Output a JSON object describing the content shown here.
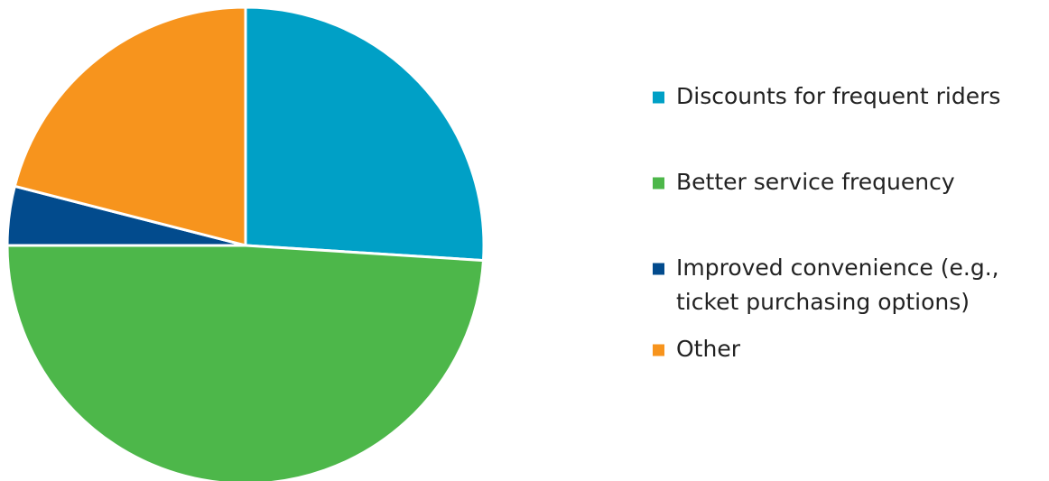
{
  "chart_data": {
    "type": "pie",
    "title": "",
    "start_angle": "12 o'clock",
    "direction": "clockwise",
    "legend_position": "right",
    "slices": [
      {
        "label": "Discounts for frequent riders",
        "value": 26,
        "color": "#00A0C6"
      },
      {
        "label": "Better service frequency",
        "value": 49,
        "color": "#4DB74A"
      },
      {
        "label": "Improved convenience (e.g., ticket purchasing options)",
        "value": 4,
        "color": "#024B8D"
      },
      {
        "label": "Other",
        "value": 21,
        "color": "#F7941D"
      }
    ]
  }
}
